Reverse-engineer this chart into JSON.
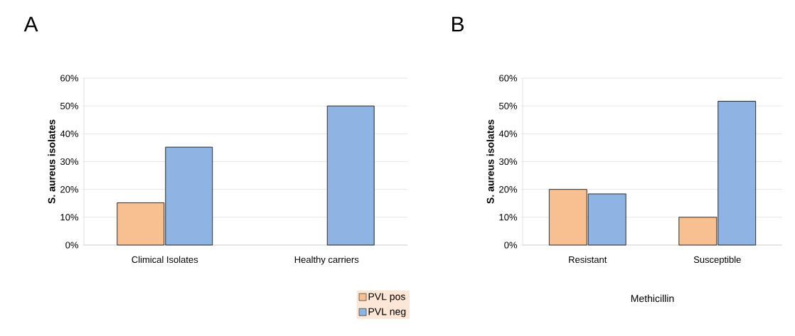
{
  "chart_data": [
    {
      "type": "bar",
      "title": "A",
      "ylabel": "S. aureus isolates",
      "categories": [
        "Climical Isolates",
        "Healthy carriers"
      ],
      "series": [
        {
          "name": "PVL pos",
          "color": "#f8c090",
          "values": [
            15.2,
            null
          ]
        },
        {
          "name": "PVL neg",
          "color": "#8eb4e3",
          "values": [
            35.2,
            50
          ]
        }
      ],
      "ylim": [
        0,
        60
      ],
      "yticks": [
        {
          "value": 0,
          "label": "0%"
        },
        {
          "value": 10,
          "label": "10%"
        },
        {
          "value": 20,
          "label": "20%"
        },
        {
          "value": 30,
          "label": "30%"
        },
        {
          "value": 40,
          "label": "40%"
        },
        {
          "value": 50,
          "label": "50%"
        },
        {
          "value": 60,
          "label": "60%"
        }
      ],
      "grid": "y",
      "legend": "bottom right"
    },
    {
      "type": "bar",
      "title": "B",
      "ylabel": "S. aureus isolates",
      "xlabel": "Methicillin",
      "categories": [
        "Resistant",
        "Susceptible"
      ],
      "series": [
        {
          "color": "#f8c090",
          "values": [
            20,
            10
          ]
        },
        {
          "color": "#8eb4e3",
          "values": [
            18.4,
            51.7
          ]
        }
      ],
      "ylim": [
        0,
        60
      ],
      "yticks": [
        {
          "value": 0,
          "label": "0%"
        },
        {
          "value": 10,
          "label": "10%"
        },
        {
          "value": 20,
          "label": "20%"
        },
        {
          "value": 30,
          "label": "30%"
        },
        {
          "value": 40,
          "label": "40%"
        },
        {
          "value": 50,
          "label": "50%"
        },
        {
          "value": 60,
          "label": "60%"
        }
      ],
      "grid": "y",
      "legend": false
    }
  ]
}
